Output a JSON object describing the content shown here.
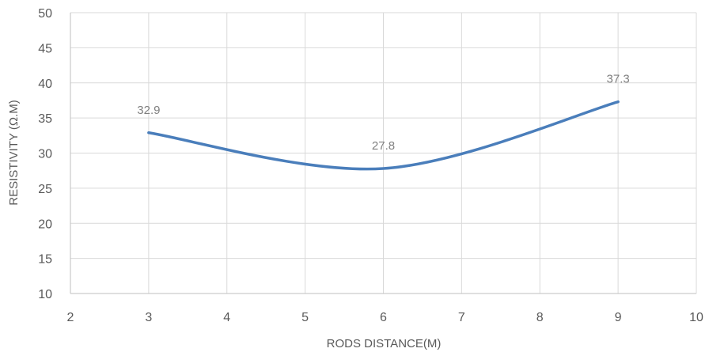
{
  "chart_data": {
    "type": "line",
    "title": "",
    "xlabel": "RODS DISTANCE(M)",
    "ylabel": "RESISTIVITY (Ω.M)",
    "xlim": [
      2,
      10
    ],
    "ylim": [
      10,
      50
    ],
    "x_ticks": [
      "2",
      "3",
      "4",
      "5",
      "6",
      "7",
      "8",
      "9",
      "10"
    ],
    "y_ticks": [
      "10",
      "15",
      "20",
      "25",
      "30",
      "35",
      "40",
      "45",
      "50"
    ],
    "grid": true,
    "smooth": true,
    "series": [
      {
        "x": [
          3,
          6,
          9
        ],
        "values": [
          32.9,
          27.8,
          37.3
        ],
        "data_labels": [
          "32.9",
          "27.8",
          "37.3"
        ],
        "color": "#4a7ebb"
      }
    ]
  }
}
